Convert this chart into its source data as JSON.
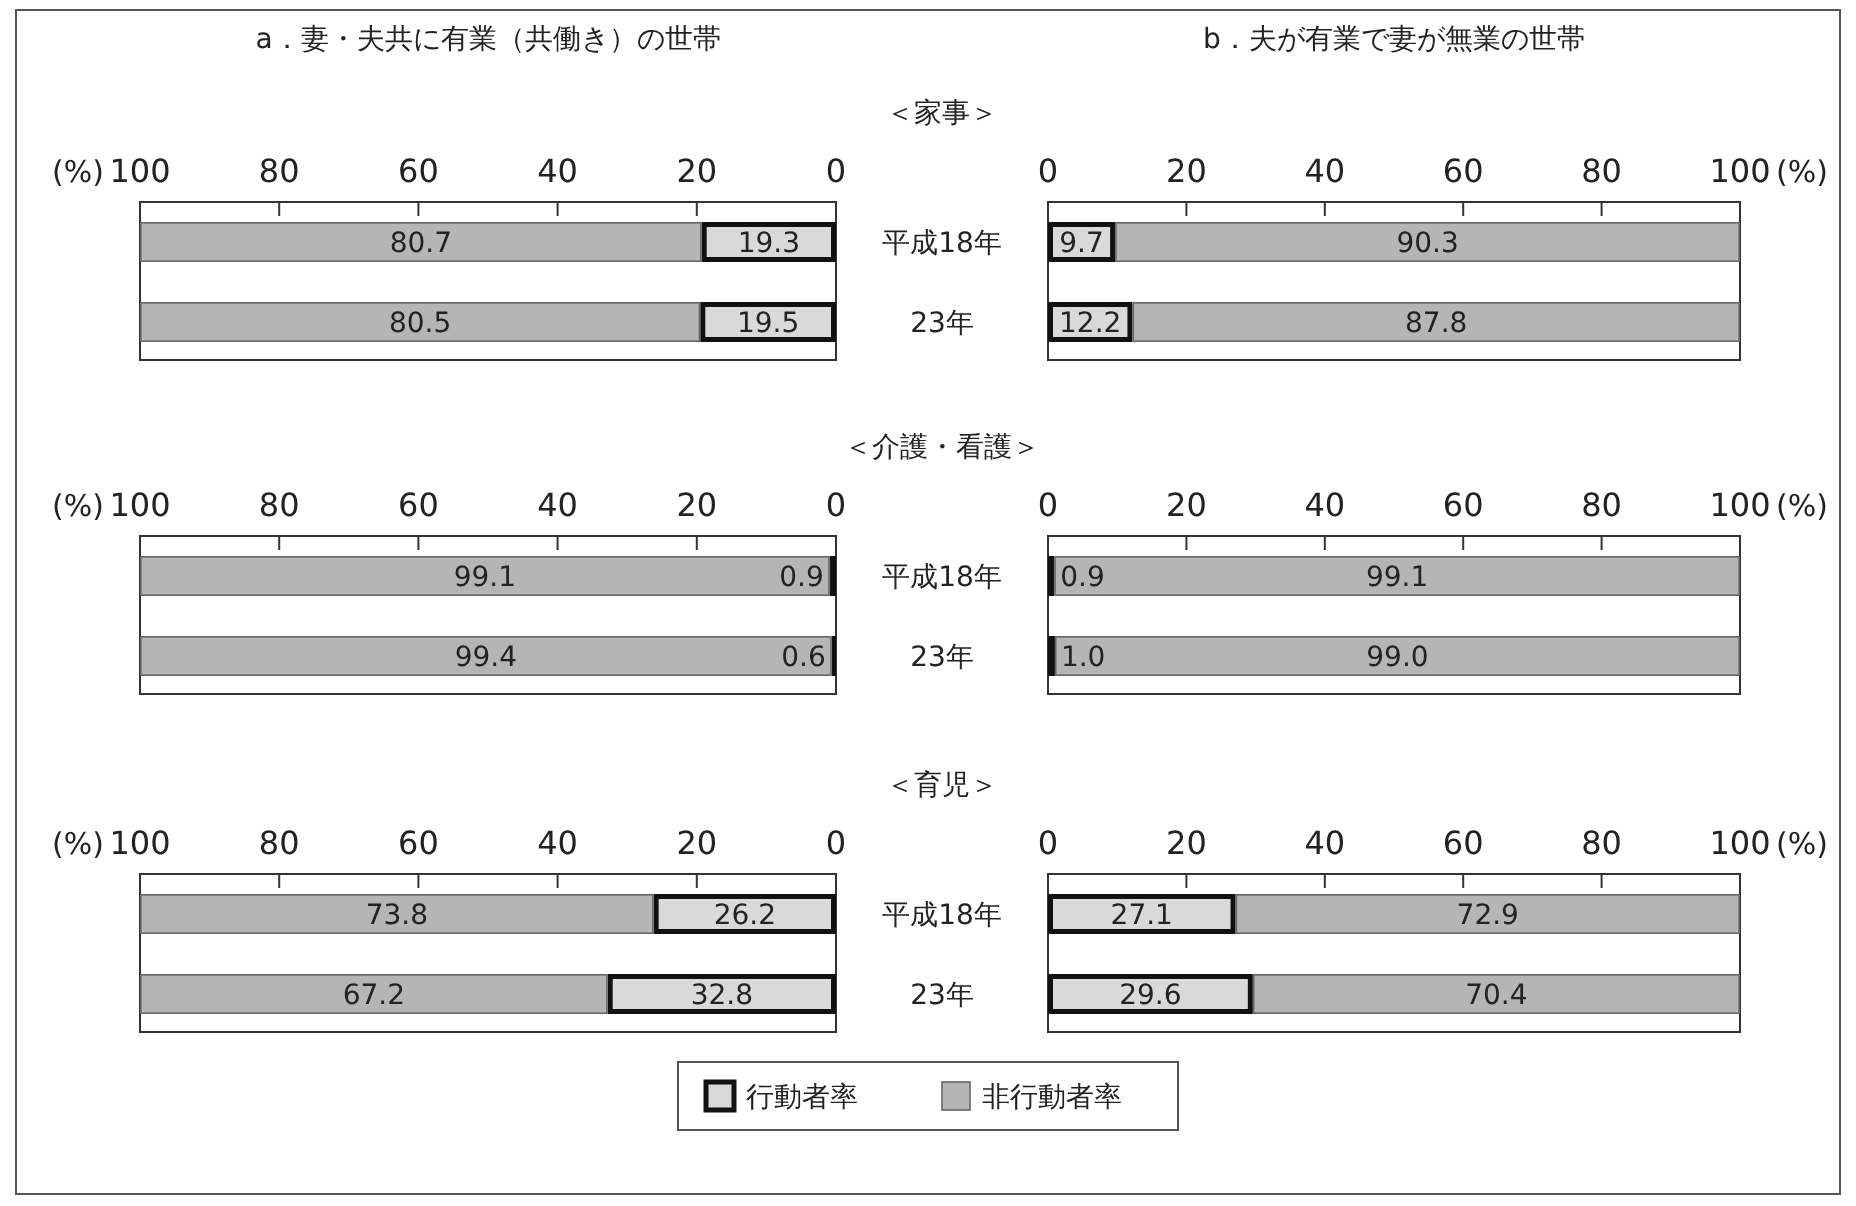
{
  "chart_data": [
    {
      "type": "bar",
      "orientation": "horizontal",
      "stacked": true,
      "title": "a．妻・夫共に有業（共働き）の世帯",
      "subtitle": "＜家事＞",
      "xlabel": "(%)",
      "categories": [
        "平成18年",
        "23年"
      ],
      "xlim": [
        100,
        0
      ],
      "xticks": [
        100,
        80,
        60,
        40,
        20,
        0
      ],
      "data_labels": true,
      "series": [
        {
          "color": "#d9d9d9",
          "values": [
            19.3,
            19.5
          ]
        },
        {
          "color": "#b5b5b5",
          "values": [
            80.7,
            80.5
          ]
        }
      ]
    },
    {
      "type": "bar",
      "orientation": "horizontal",
      "stacked": true,
      "title": "b．夫が有業で妻が無業の世帯",
      "xlabel": "(%)",
      "categories": [
        "平成18年",
        "23年"
      ],
      "tick_labels": "x",
      "xlim": [
        0,
        100
      ],
      "xticks": [
        0,
        20,
        40,
        60,
        80,
        100
      ],
      "data_labels": true,
      "series": [
        {
          "color": "#d9d9d9",
          "values": [
            9.7,
            12.2
          ]
        },
        {
          "color": "#b5b5b5",
          "values": [
            90.3,
            87.8
          ]
        }
      ]
    },
    {
      "type": "bar",
      "orientation": "horizontal",
      "stacked": true,
      "xlabel": "(%)",
      "categories": [
        "平成18年",
        "23年"
      ],
      "xlim": [
        100,
        0
      ],
      "xticks": [
        100,
        80,
        60,
        40,
        20,
        0
      ],
      "data_labels": true,
      "series": [
        {
          "color": "#d9d9d9",
          "values": [
            0.9,
            0.6
          ]
        },
        {
          "color": "#b5b5b5",
          "values": [
            99.1,
            99.4
          ]
        }
      ]
    },
    {
      "type": "bar",
      "orientation": "horizontal",
      "stacked": true,
      "subtitle": "＜介護・看護＞",
      "xlabel": "(%)",
      "categories": [
        "平成18年",
        "23年"
      ],
      "tick_labels": "x",
      "xlim": [
        0,
        100
      ],
      "xticks": [
        0,
        20,
        40,
        60,
        80,
        100
      ],
      "series": [
        {
          "color": "#d9d9d9",
          "values": [
            0.9,
            1.0
          ],
          "value_labels": [
            "0.9",
            "1.0"
          ]
        },
        {
          "color": "#b5b5b5",
          "values": [
            99.1,
            99.0
          ],
          "value_labels": [
            "99.1",
            "99.0"
          ]
        }
      ]
    },
    {
      "type": "bar",
      "orientation": "horizontal",
      "stacked": true,
      "xlabel": "(%)",
      "categories": [
        "平成18年",
        "23年"
      ],
      "xlim": [
        100,
        0
      ],
      "xticks": [
        100,
        80,
        60,
        40,
        20,
        0
      ],
      "data_labels": true,
      "legend": "bottom",
      "series": [
        {
          "name": "行動者率",
          "color": "#d9d9d9",
          "values": [
            26.2,
            32.8
          ]
        },
        {
          "name": "非行動者率",
          "color": "#b5b5b5",
          "values": [
            73.8,
            67.2
          ]
        }
      ]
    },
    {
      "type": "bar",
      "orientation": "horizontal",
      "stacked": true,
      "subtitle": "＜育児＞",
      "xlabel": "(%)",
      "categories": [
        "平成18年",
        "23年"
      ],
      "tick_labels": "x",
      "xlim": [
        0,
        100
      ],
      "xticks": [
        0,
        20,
        40,
        60,
        80,
        100
      ],
      "data_labels": true,
      "series": [
        {
          "color": "#d9d9d9",
          "values": [
            27.1,
            29.6
          ]
        },
        {
          "color": "#b5b5b5",
          "values": [
            72.9,
            70.4
          ]
        }
      ]
    }
  ]
}
